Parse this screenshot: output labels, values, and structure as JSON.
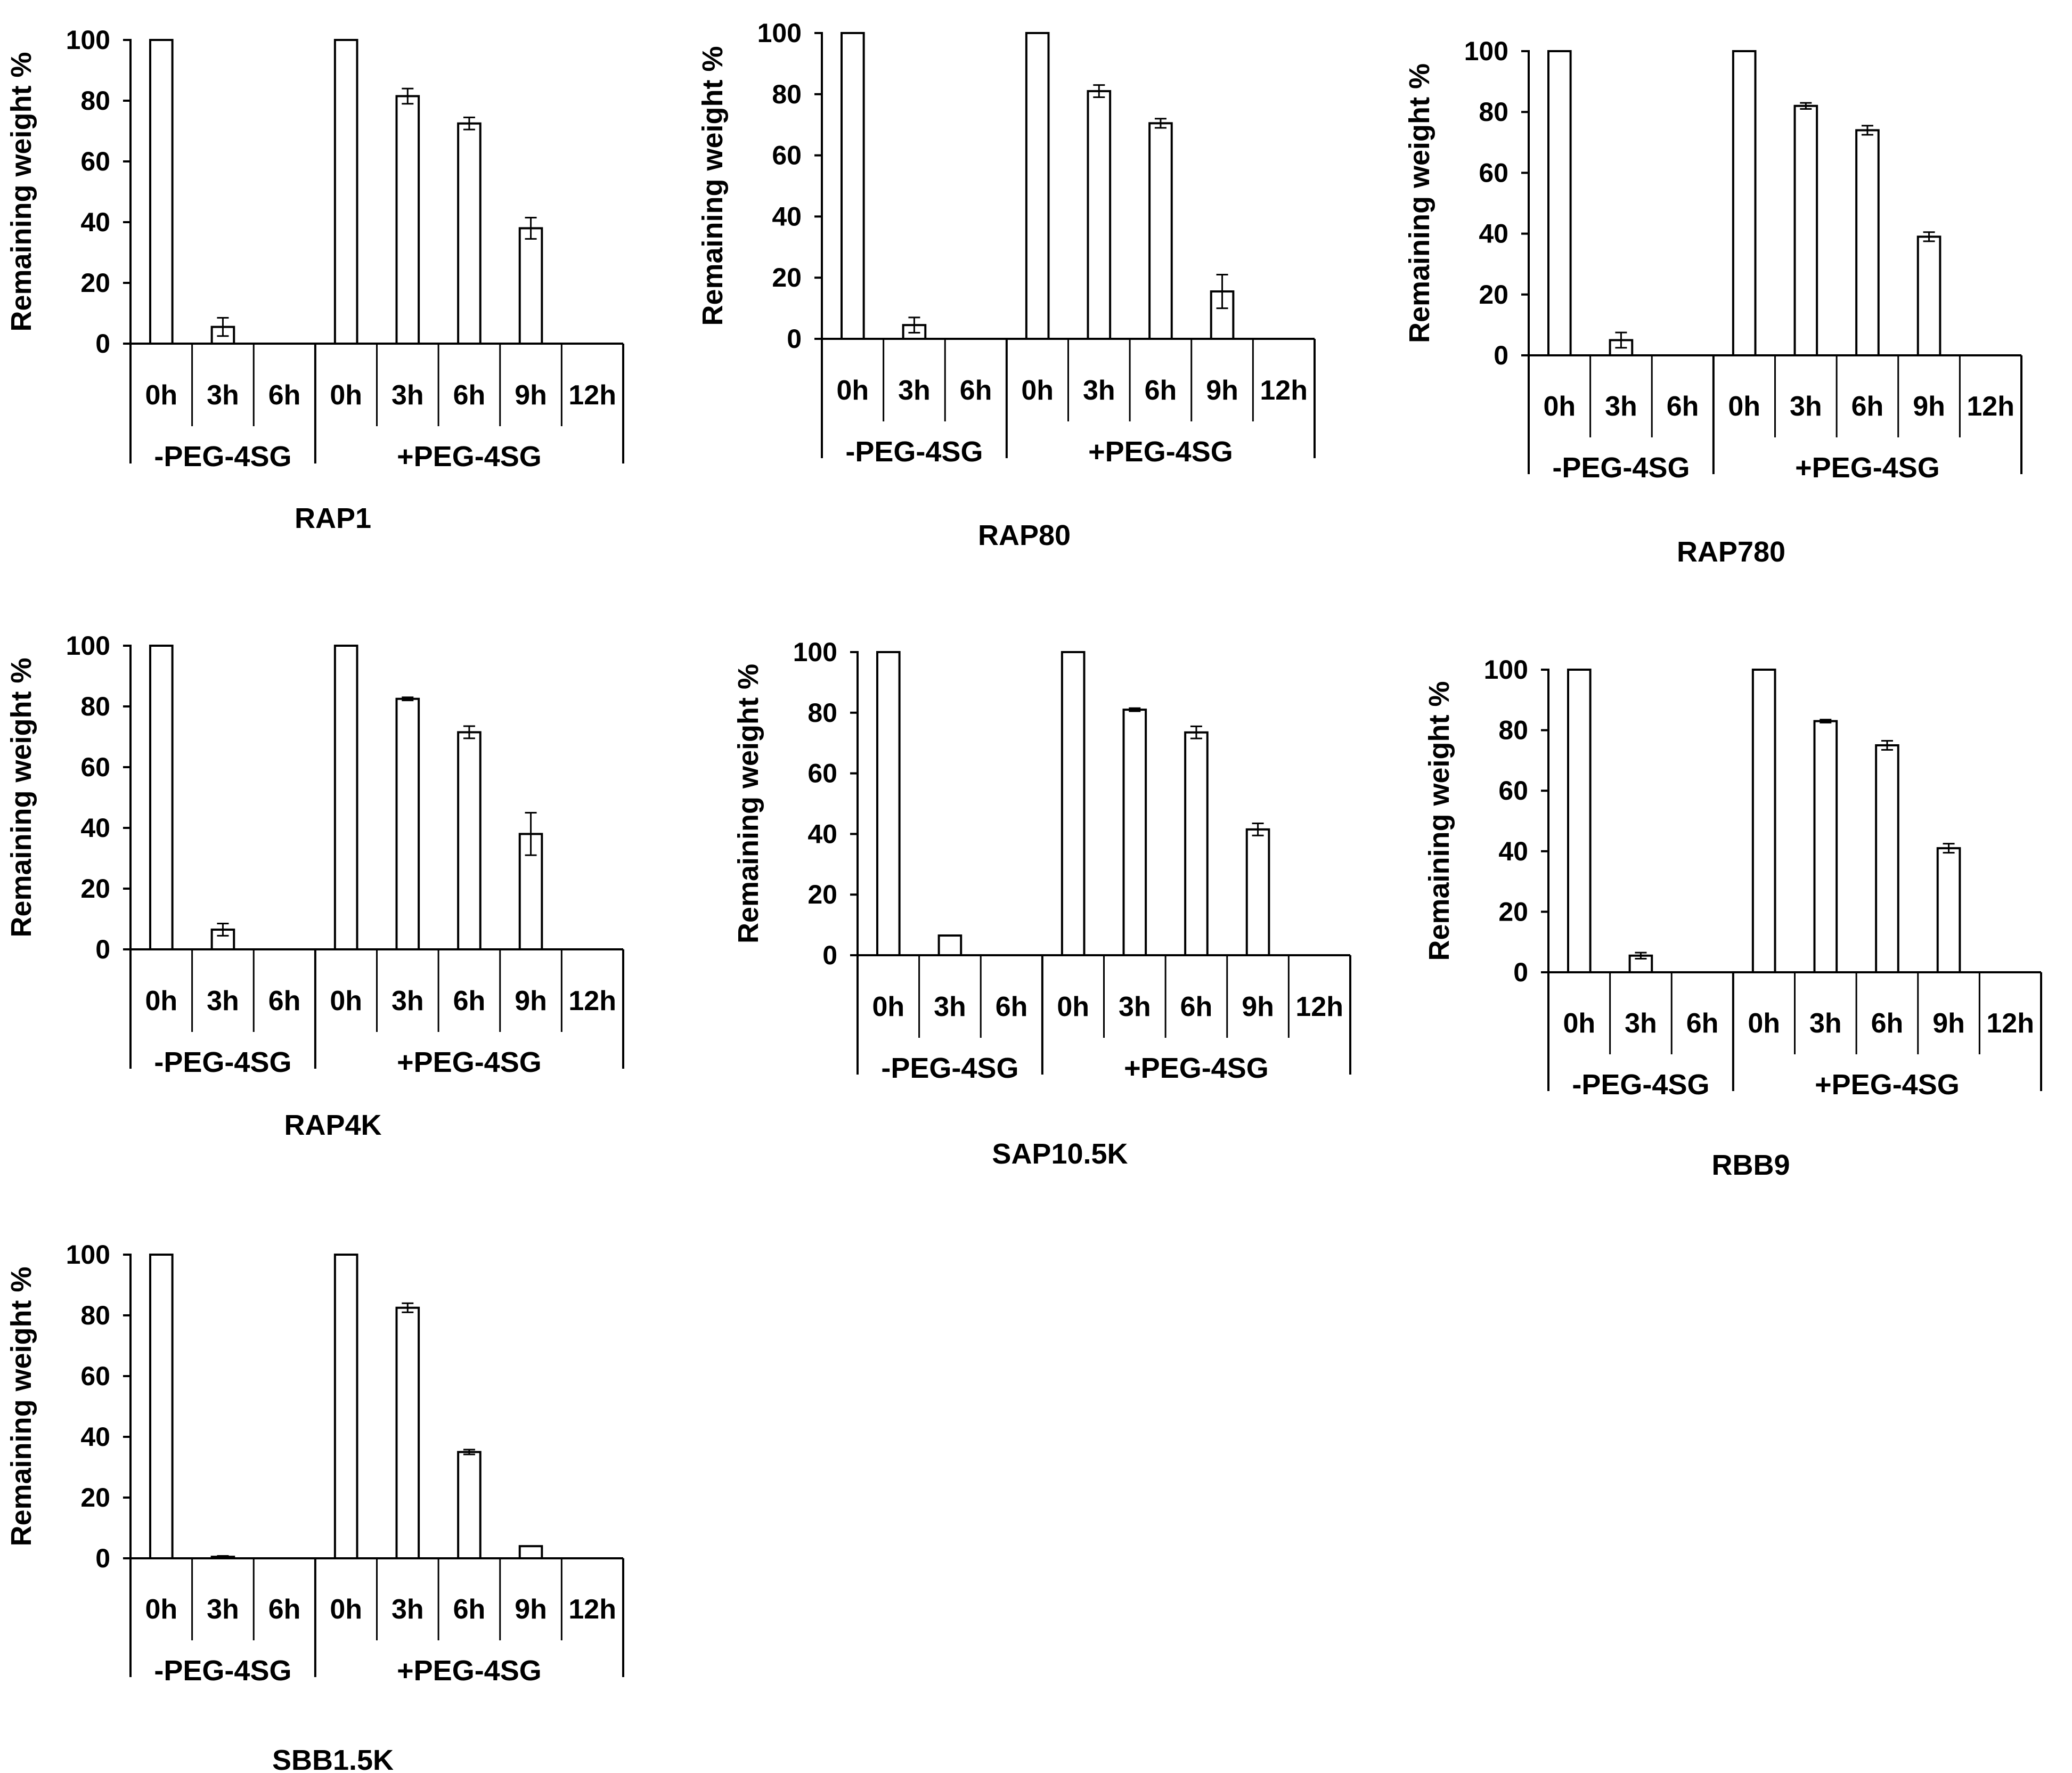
{
  "chart_data": [
    {
      "type": "bar",
      "title": "RAP1",
      "ylabel": "Remaining weight %",
      "ylim": [
        0,
        100
      ],
      "yticks": [
        "0",
        "20",
        "40",
        "60",
        "80",
        "100"
      ],
      "groups": [
        {
          "label": "-PEG-4SG",
          "categories": [
            "0h",
            "3h",
            "6h"
          ],
          "values": [
            100,
            5.5,
            0
          ],
          "errors": [
            0,
            3,
            0
          ]
        },
        {
          "label": "+PEG-4SG",
          "categories": [
            "0h",
            "3h",
            "6h",
            "9h",
            "12h"
          ],
          "values": [
            100,
            81.5,
            72.5,
            38,
            0
          ],
          "errors": [
            0,
            2.5,
            2,
            3.5,
            0
          ]
        }
      ]
    },
    {
      "type": "bar",
      "title": "RAP80",
      "ylabel": "Remaining weight %",
      "ylim": [
        0,
        100
      ],
      "yticks": [
        "0",
        "20",
        "40",
        "60",
        "80",
        "100"
      ],
      "groups": [
        {
          "label": "-PEG-4SG",
          "categories": [
            "0h",
            "3h",
            "6h"
          ],
          "values": [
            100,
            4.5,
            0
          ],
          "errors": [
            0,
            2.5,
            0
          ]
        },
        {
          "label": "+PEG-4SG",
          "categories": [
            "0h",
            "3h",
            "6h",
            "9h",
            "12h"
          ],
          "values": [
            100,
            81,
            70.5,
            15.5,
            0
          ],
          "errors": [
            0,
            2,
            1.5,
            5.5,
            0
          ]
        }
      ]
    },
    {
      "type": "bar",
      "title": "RAP780",
      "ylabel": "Remaining weight %",
      "ylim": [
        0,
        100
      ],
      "yticks": [
        "0",
        "20",
        "40",
        "60",
        "80",
        "100"
      ],
      "groups": [
        {
          "label": "-PEG-4SG",
          "categories": [
            "0h",
            "3h",
            "6h"
          ],
          "values": [
            100,
            5,
            0
          ],
          "errors": [
            0,
            2.5,
            0
          ]
        },
        {
          "label": "+PEG-4SG",
          "categories": [
            "0h",
            "3h",
            "6h",
            "9h",
            "12h"
          ],
          "values": [
            100,
            82,
            74,
            39,
            0
          ],
          "errors": [
            0,
            1,
            1.5,
            1.5,
            0
          ]
        }
      ]
    },
    {
      "type": "bar",
      "title": "RAP4K",
      "ylabel": "Remaining weight %",
      "ylim": [
        0,
        100
      ],
      "yticks": [
        "0",
        "20",
        "40",
        "60",
        "80",
        "100"
      ],
      "groups": [
        {
          "label": "-PEG-4SG",
          "categories": [
            "0h",
            "3h",
            "6h"
          ],
          "values": [
            100,
            6.5,
            0
          ],
          "errors": [
            0,
            2,
            0
          ]
        },
        {
          "label": "+PEG-4SG",
          "categories": [
            "0h",
            "3h",
            "6h",
            "9h",
            "12h"
          ],
          "values": [
            100,
            82.5,
            71.5,
            38,
            0
          ],
          "errors": [
            0,
            0.5,
            2,
            7,
            0
          ]
        }
      ]
    },
    {
      "type": "bar",
      "title": "SAP10.5K",
      "ylabel": "Remaining weight %",
      "ylim": [
        0,
        100
      ],
      "yticks": [
        "0",
        "20",
        "40",
        "60",
        "80",
        "100"
      ],
      "groups": [
        {
          "label": "-PEG-4SG",
          "categories": [
            "0h",
            "3h",
            "6h"
          ],
          "values": [
            100,
            6.5,
            0
          ],
          "errors": [
            0,
            0,
            0
          ]
        },
        {
          "label": "+PEG-4SG",
          "categories": [
            "0h",
            "3h",
            "6h",
            "9h",
            "12h"
          ],
          "values": [
            100,
            81,
            73.5,
            41.5,
            0
          ],
          "errors": [
            0,
            0.5,
            2,
            2,
            0
          ]
        }
      ]
    },
    {
      "type": "bar",
      "title": "RBB9",
      "ylabel": "Remaining weight %",
      "ylim": [
        0,
        100
      ],
      "yticks": [
        "0",
        "20",
        "40",
        "60",
        "80",
        "100"
      ],
      "groups": [
        {
          "label": "-PEG-4SG",
          "categories": [
            "0h",
            "3h",
            "6h"
          ],
          "values": [
            100,
            5.5,
            0
          ],
          "errors": [
            0,
            1,
            0
          ]
        },
        {
          "label": "+PEG-4SG",
          "categories": [
            "0h",
            "3h",
            "6h",
            "9h",
            "12h"
          ],
          "values": [
            100,
            83,
            75,
            41,
            0
          ],
          "errors": [
            0,
            0.5,
            1.5,
            1.5,
            0
          ]
        }
      ]
    },
    {
      "type": "bar",
      "title": "SBB1.5K",
      "ylabel": "Remaining weight %",
      "ylim": [
        0,
        100
      ],
      "yticks": [
        "0",
        "20",
        "40",
        "60",
        "80",
        "100"
      ],
      "groups": [
        {
          "label": "-PEG-4SG",
          "categories": [
            "0h",
            "3h",
            "6h"
          ],
          "values": [
            100,
            0.5,
            0
          ],
          "errors": [
            0,
            0.3,
            0
          ]
        },
        {
          "label": "+PEG-4SG",
          "categories": [
            "0h",
            "3h",
            "6h",
            "9h",
            "12h"
          ],
          "values": [
            100,
            82.5,
            35,
            4,
            0
          ],
          "errors": [
            0,
            1.5,
            0.8,
            0,
            0
          ]
        }
      ]
    }
  ]
}
